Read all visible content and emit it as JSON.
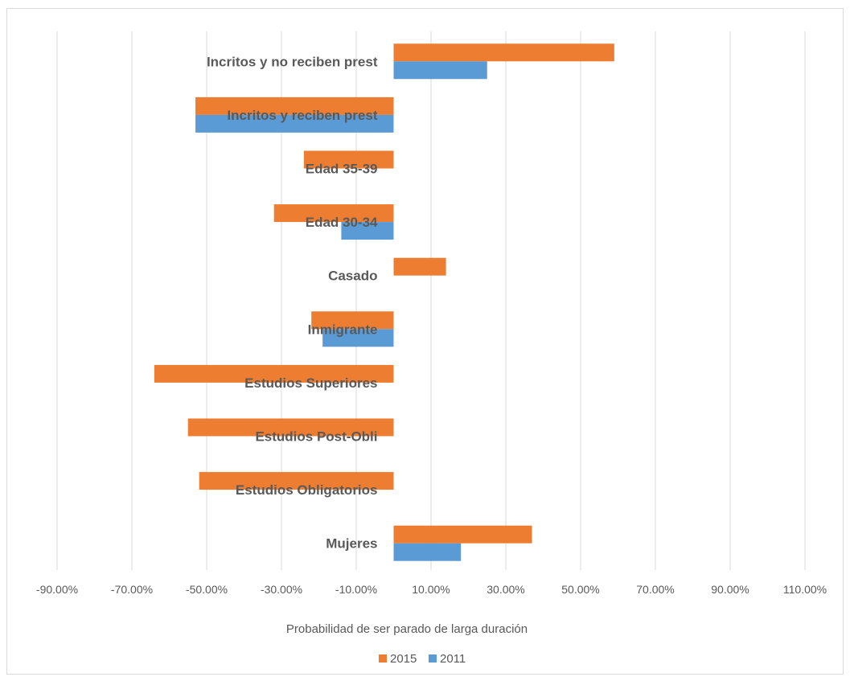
{
  "chart_data": {
    "type": "bar",
    "orientation": "horizontal",
    "title": "",
    "xlabel": "Probabilidad de ser parado de larga duración",
    "ylabel": "",
    "xlim": [
      -0.9,
      1.1
    ],
    "xticks": [
      -0.9,
      -0.7,
      -0.5,
      -0.3,
      -0.1,
      0.1,
      0.3,
      0.5,
      0.7,
      0.9,
      1.1
    ],
    "xtick_labels": [
      "-90.00%",
      "-70.00%",
      "-50.00%",
      "-30.00%",
      "-10.00%",
      "10.00%",
      "30.00%",
      "50.00%",
      "70.00%",
      "90.00%",
      "110.00%"
    ],
    "grid": "vertical",
    "legend_position": "bottom",
    "categories": [
      "Incritos y no reciben prest",
      "Incritos y reciben prest",
      "Edad 35-39",
      "Edad 30-34",
      "Casado",
      "Inmigrante",
      "Estudios Superiores",
      "Estudios Post-Obli",
      "Estudios Obligatorios",
      "Mujeres"
    ],
    "series": [
      {
        "name": "2015",
        "color": "#ed7d31",
        "values": [
          0.59,
          -0.53,
          -0.24,
          -0.32,
          0.14,
          -0.22,
          -0.64,
          -0.55,
          -0.52,
          0.37
        ]
      },
      {
        "name": "2011",
        "color": "#5b9bd5",
        "values": [
          0.25,
          -0.53,
          0.0,
          -0.14,
          0.0,
          -0.19,
          0.0,
          0.0,
          0.0,
          0.18
        ]
      }
    ]
  }
}
